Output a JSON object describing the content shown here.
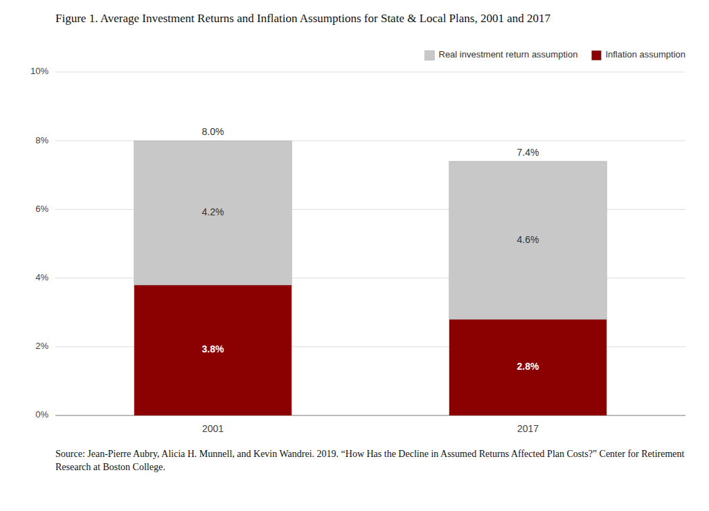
{
  "chart_data": {
    "type": "bar",
    "title": "Figure 1. Average Investment Returns and Inflation Assumptions for State & Local Plans, 2001 and 2017",
    "source": "Source: Jean-Pierre Aubry, Alicia H. Munnell, and Kevin Wandrei. 2019. “How Has the Decline in Assumed Returns Affected Plan Costs?” Center for Retirement Research at Boston College.",
    "categories": [
      "2001",
      "2017"
    ],
    "series": [
      {
        "name": "Inflation assumption",
        "color": "#8B0000",
        "values": [
          0.038,
          0.028
        ],
        "value_labels": [
          "3.8%",
          "2.8%"
        ]
      },
      {
        "name": "Real investment return assumption",
        "color": "#C8C8C8",
        "values": [
          0.042,
          0.046
        ],
        "value_labels": [
          "4.2%",
          "4.6%"
        ]
      }
    ],
    "totals": [
      0.08,
      0.074
    ],
    "total_labels": [
      "8.0%",
      "7.4%"
    ],
    "ylim": [
      0,
      0.1
    ],
    "yticks": [
      {
        "value": 0,
        "label": "0%"
      },
      {
        "value": 0.02,
        "label": "2%"
      },
      {
        "value": 0.04,
        "label": "4%"
      },
      {
        "value": 0.06,
        "label": "6%"
      },
      {
        "value": 0.08,
        "label": "8%"
      },
      {
        "value": 0.1,
        "label": "10%"
      }
    ],
    "stacked": true,
    "grid": true,
    "legend": "upper right",
    "data_labels": true
  }
}
